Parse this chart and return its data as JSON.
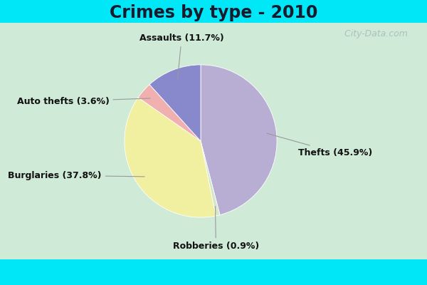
{
  "title": "Crimes by type - 2010",
  "slices": [
    {
      "label": "Thefts (45.9%)",
      "value": 45.9,
      "color": "#b8aed4"
    },
    {
      "label": "Robberies (0.9%)",
      "value": 0.9,
      "color": "#d4e8c8"
    },
    {
      "label": "Burglaries (37.8%)",
      "value": 37.8,
      "color": "#f0f0a0"
    },
    {
      "label": "Auto thefts (3.6%)",
      "value": 3.6,
      "color": "#f0b0b0"
    },
    {
      "label": "Assaults (11.7%)",
      "value": 11.7,
      "color": "#8888cc"
    }
  ],
  "bg_top": "#00e8f8",
  "bg_main": "#d0ead8",
  "title_fontsize": 17,
  "label_fontsize": 9,
  "watermark": " City-Data.com",
  "label_positions": {
    "Thefts (45.9%)": [
      1.28,
      -0.15,
      "left"
    ],
    "Robberies (0.9%)": [
      0.2,
      -1.38,
      "center"
    ],
    "Burglaries (37.8%)": [
      -1.3,
      -0.45,
      "right"
    ],
    "Auto thefts (3.6%)": [
      -1.2,
      0.52,
      "right"
    ],
    "Assaults (11.7%)": [
      -0.25,
      1.35,
      "center"
    ]
  }
}
